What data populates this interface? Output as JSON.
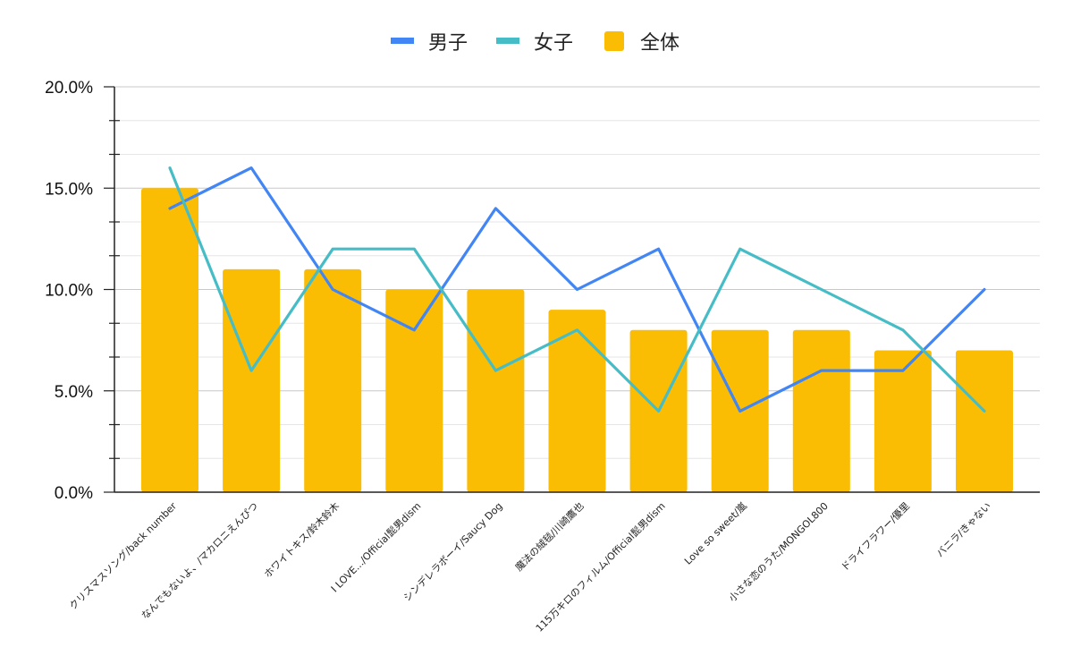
{
  "chart_data": {
    "type": "bar",
    "title": "",
    "xlabel": "",
    "ylabel": "",
    "ylim": [
      0,
      20
    ],
    "y_tick_values": [
      0,
      5,
      10,
      15,
      20
    ],
    "y_tick_labels": [
      "0.0%",
      "5.0%",
      "10.0%",
      "15.0%",
      "20.0%"
    ],
    "grid": true,
    "legend_position": "top-center",
    "categories": [
      "クリスマスソング/back number",
      "なんでもないよ、/マカロニえんぴつ",
      "ホワイトキス/鈴木鈴木",
      "I LOVE.../Official髭男dism",
      "シンデレラボーイ/Saucy Dog",
      "魔法の絨毯/川崎鷹也",
      "115万キロのフィルム/Official髭男dism",
      "Love so sweet/嵐",
      "小さな恋のうた/MONGOL800",
      "ドライフラワー/優里",
      "バニラ/きゃない"
    ],
    "series": [
      {
        "name": "男子",
        "type": "line",
        "color": "#4285f4",
        "values": [
          14,
          16,
          10,
          8,
          14,
          10,
          12,
          4,
          6,
          6,
          10
        ]
      },
      {
        "name": "女子",
        "type": "line",
        "color": "#46bdc6",
        "values": [
          16,
          6,
          12,
          12,
          6,
          8,
          4,
          12,
          10,
          8,
          4
        ]
      },
      {
        "name": "全体",
        "type": "bar",
        "color": "#fbbc04",
        "values": [
          15,
          11,
          11,
          10,
          10,
          9,
          8,
          8,
          8,
          7,
          7
        ]
      }
    ]
  }
}
